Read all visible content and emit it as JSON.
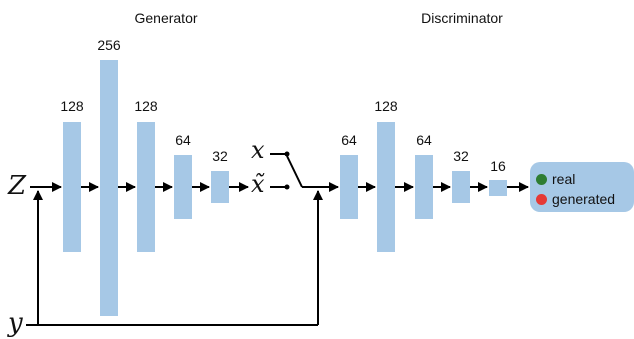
{
  "titles": {
    "generator": "Generator",
    "discriminator": "Discriminator"
  },
  "generator_layers": [
    "128",
    "256",
    "128",
    "64",
    "32"
  ],
  "discriminator_layers": [
    "64",
    "128",
    "64",
    "32",
    "16"
  ],
  "variables": {
    "z": "Z",
    "y": "y",
    "x": "x",
    "x_tilde": "x̃"
  },
  "outputs": [
    {
      "label": "real",
      "color": "#2e7d32"
    },
    {
      "label": "generated",
      "color": "#e53935"
    }
  ],
  "colors": {
    "layer": "#a6c8e6",
    "arrow": "#000000",
    "output_box": "#a6c8e6"
  }
}
